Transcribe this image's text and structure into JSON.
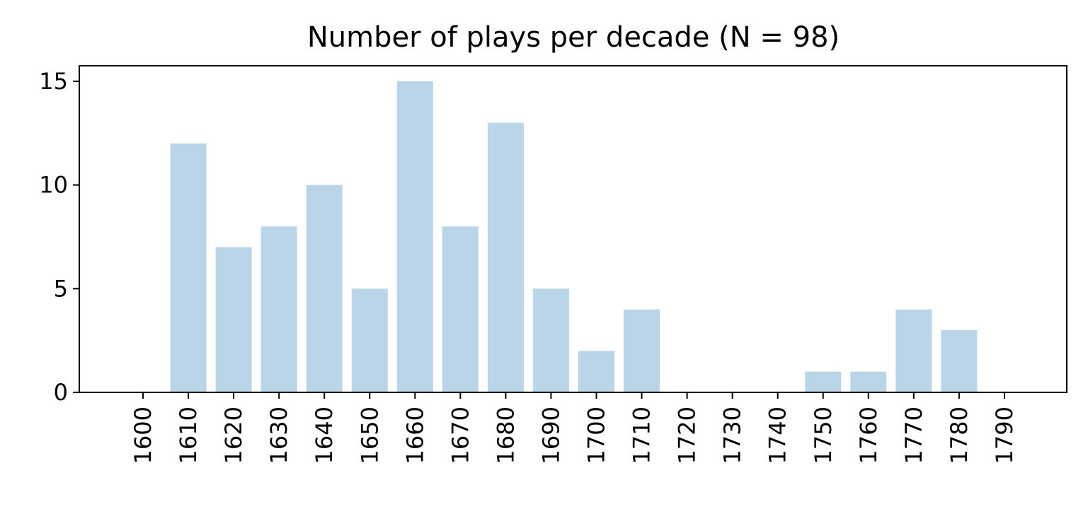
{
  "chart_data": {
    "type": "bar",
    "title": "Number of plays per decade (N = 98)",
    "xlabel": "",
    "ylabel": "",
    "categories": [
      "1600",
      "1610",
      "1620",
      "1630",
      "1640",
      "1650",
      "1660",
      "1670",
      "1680",
      "1690",
      "1700",
      "1710",
      "1720",
      "1730",
      "1740",
      "1750",
      "1760",
      "1770",
      "1780",
      "1790"
    ],
    "values": [
      0,
      12,
      7,
      8,
      10,
      5,
      15,
      8,
      13,
      5,
      2,
      4,
      0,
      0,
      0,
      1,
      1,
      4,
      3,
      0
    ],
    "ylim": [
      0,
      15.75
    ],
    "yticks": [
      0,
      5,
      10,
      15
    ],
    "bar_color": "#bad5e8",
    "grid": false,
    "legend": "none"
  }
}
